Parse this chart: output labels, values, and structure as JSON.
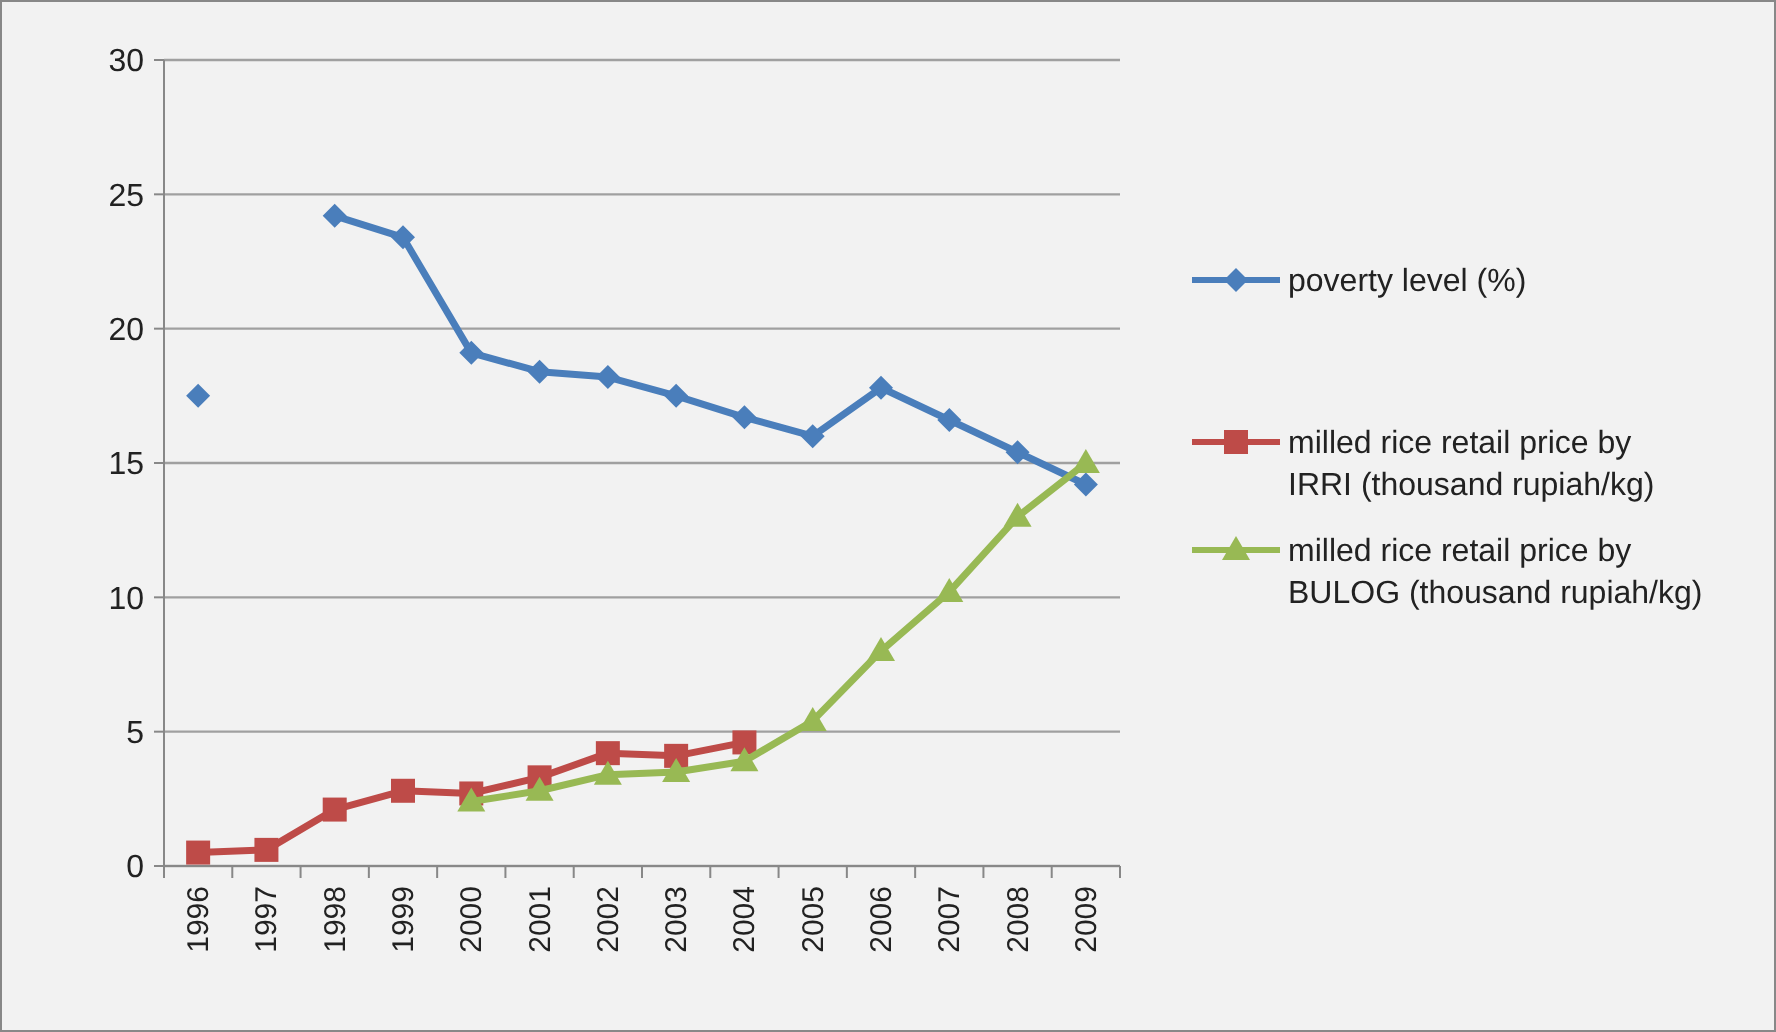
{
  "chart_data": {
    "type": "line",
    "categories": [
      "1996",
      "1997",
      "1998",
      "1999",
      "2000",
      "2001",
      "2002",
      "2003",
      "2004",
      "2005",
      "2006",
      "2007",
      "2008",
      "2009"
    ],
    "series": [
      {
        "name": "poverty level (%)",
        "color": "#4a7ebb",
        "marker": "diamond",
        "values": [
          17.5,
          null,
          24.2,
          23.4,
          19.1,
          18.4,
          18.2,
          17.5,
          16.7,
          16.0,
          17.8,
          16.6,
          15.4,
          14.2
        ]
      },
      {
        "name": "milled rice retail price by IRRI (thousand rupiah/kg)",
        "color": "#be4b48",
        "marker": "square",
        "values": [
          0.5,
          0.6,
          2.1,
          2.8,
          2.7,
          3.3,
          4.2,
          4.1,
          4.6,
          null,
          null,
          null,
          null,
          null
        ]
      },
      {
        "name": "milled rice retail price by BULOG (thousand rupiah/kg)",
        "color": "#98b954",
        "marker": "triangle",
        "values": [
          null,
          null,
          null,
          null,
          2.4,
          2.8,
          3.4,
          3.5,
          3.9,
          5.4,
          8.0,
          10.2,
          13.0,
          15.0
        ]
      }
    ],
    "ylim": [
      0,
      30
    ],
    "yticks": [
      0,
      5,
      10,
      15,
      20,
      25,
      30
    ],
    "grid": "y",
    "legend": "right"
  }
}
